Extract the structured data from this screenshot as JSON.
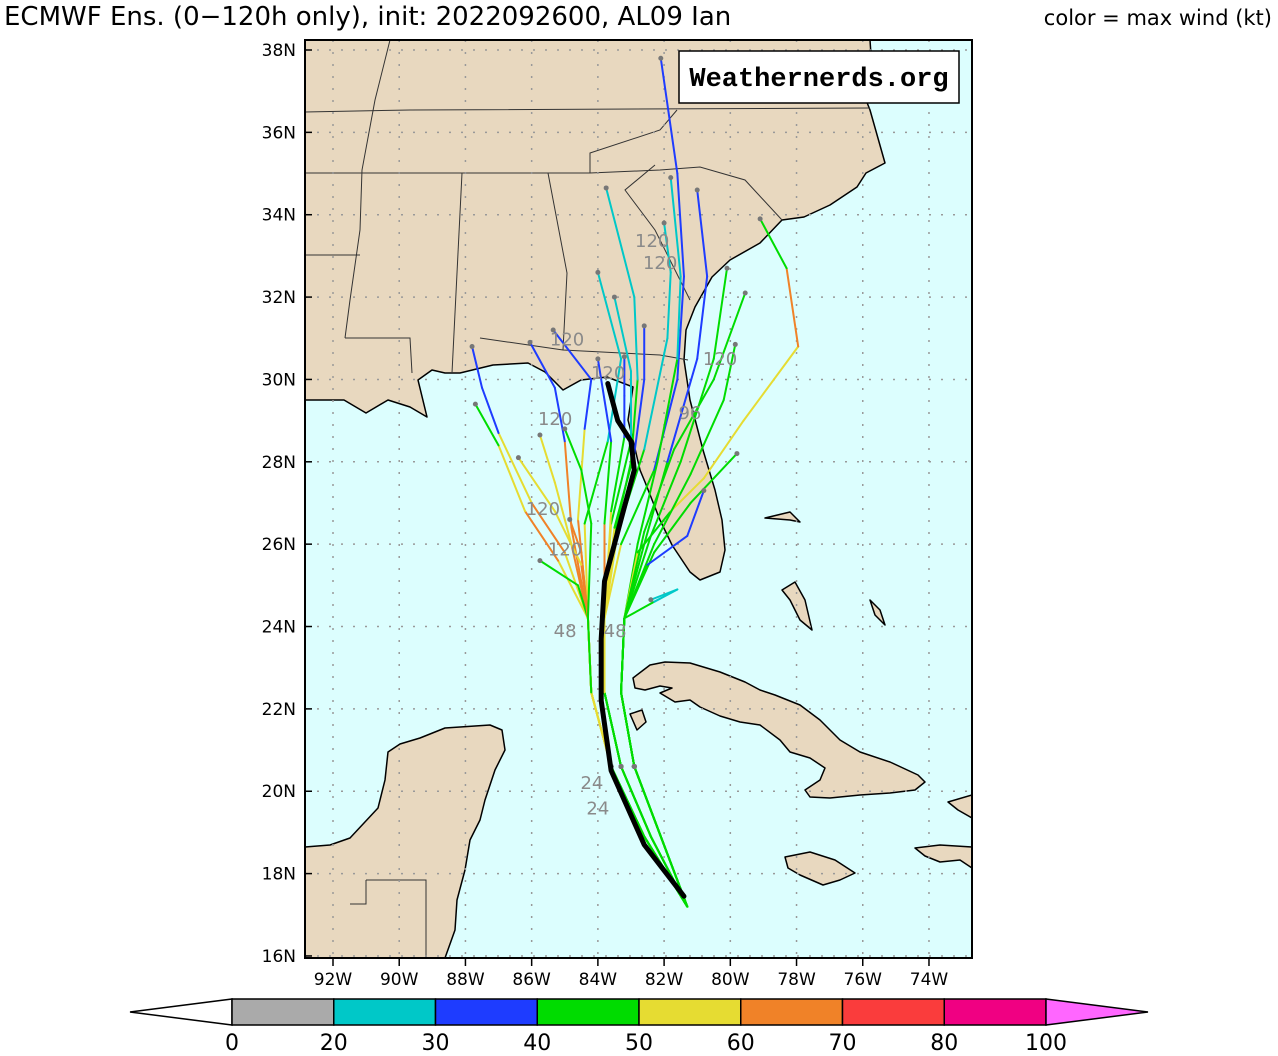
{
  "header": {
    "title": "ECMWF Ens. (0−120h only), init: 2022092600, AL09 Ian",
    "legend_caption": "color = max wind (kt)"
  },
  "watermark": "Weathernerds.org",
  "colors": {
    "ocean": "#dcfefe",
    "land": "#e8d8bf",
    "mean_track": "#000000",
    "point": "#777777"
  },
  "axes": {
    "lat_labels": [
      "38N",
      "36N",
      "34N",
      "32N",
      "30N",
      "28N",
      "26N",
      "24N",
      "22N",
      "20N",
      "18N",
      "16N"
    ],
    "lat_values": [
      38,
      36,
      34,
      32,
      30,
      28,
      26,
      24,
      22,
      20,
      18,
      16
    ],
    "lon_labels": [
      "92W",
      "90W",
      "88W",
      "86W",
      "84W",
      "82W",
      "80W",
      "78W",
      "76W",
      "74W"
    ],
    "lon_values": [
      -92,
      -90,
      -88,
      -86,
      -84,
      -82,
      -80,
      -78,
      -76,
      -74
    ]
  },
  "colorbar": {
    "labels": [
      "0",
      "20",
      "30",
      "40",
      "50",
      "60",
      "70",
      "80",
      "100"
    ],
    "bins": [
      {
        "min": 0,
        "max": 20,
        "color": "#aaaaaa"
      },
      {
        "min": 20,
        "max": 30,
        "color": "#00c8c8"
      },
      {
        "min": 30,
        "max": 40,
        "color": "#1e3cff"
      },
      {
        "min": 40,
        "max": 50,
        "color": "#00dc00"
      },
      {
        "min": 50,
        "max": 60,
        "color": "#e6dc32"
      },
      {
        "min": 60,
        "max": 70,
        "color": "#f08228"
      },
      {
        "min": 70,
        "max": 80,
        "color": "#fa3c3c"
      },
      {
        "min": 80,
        "max": 100,
        "color": "#f00082"
      }
    ],
    "over_color": "#ff66ff",
    "under_color": "#ffffff"
  },
  "mean_track": [
    [
      -81.4,
      17.45
    ],
    [
      -82.6,
      18.7
    ],
    [
      -83.6,
      20.5
    ],
    [
      -83.9,
      22.2
    ],
    [
      -83.9,
      23.7
    ],
    [
      -83.8,
      25.1
    ],
    [
      -83.3,
      26.6
    ],
    [
      -82.9,
      27.8
    ],
    [
      -83.0,
      28.5
    ],
    [
      -83.4,
      29.0
    ],
    [
      -83.7,
      29.9
    ]
  ],
  "members": [
    [
      [
        -81.3,
        17.2,
        45
      ],
      [
        -82.4,
        18.9,
        45
      ],
      [
        -83.3,
        20.6,
        45
      ],
      [
        -83.8,
        22.4,
        45
      ],
      [
        -83.8,
        24.2,
        50
      ],
      [
        -83.3,
        26.0,
        50
      ],
      [
        -82.3,
        27.8,
        45
      ],
      [
        -81.6,
        30.0,
        35
      ],
      [
        -81.4,
        32.5,
        35
      ],
      [
        -81.6,
        35.0,
        35
      ],
      [
        -82.1,
        37.8,
        30
      ]
    ],
    [
      [
        -81.3,
        17.2,
        45
      ],
      [
        -82.4,
        18.9,
        45
      ],
      [
        -83.3,
        20.6,
        45
      ],
      [
        -83.8,
        22.4,
        45
      ],
      [
        -83.8,
        24.2,
        50
      ],
      [
        -83.5,
        26.2,
        55
      ],
      [
        -83.0,
        28.0,
        45
      ],
      [
        -82.8,
        30.0,
        40
      ],
      [
        -82.9,
        32.0,
        25
      ],
      [
        -83.75,
        34.65,
        25
      ]
    ],
    [
      [
        -81.3,
        17.2,
        45
      ],
      [
        -82.1,
        18.9,
        45
      ],
      [
        -82.9,
        20.6,
        45
      ],
      [
        -83.3,
        22.4,
        45
      ],
      [
        -83.2,
        24.2,
        45
      ],
      [
        -82.8,
        26.0,
        45
      ],
      [
        -82.2,
        28.0,
        45
      ],
      [
        -81.6,
        30.5,
        45
      ],
      [
        -81.5,
        32.5,
        25
      ],
      [
        -81.8,
        34.9,
        25
      ]
    ],
    [
      [
        -81.3,
        17.2,
        45
      ],
      [
        -82.1,
        18.9,
        45
      ],
      [
        -82.9,
        20.6,
        45
      ],
      [
        -83.3,
        22.4,
        45
      ],
      [
        -83.2,
        24.2,
        45
      ],
      [
        -82.6,
        26.0,
        45
      ],
      [
        -81.9,
        28.0,
        45
      ],
      [
        -81.0,
        30.5,
        35
      ],
      [
        -80.7,
        32.5,
        35
      ],
      [
        -81.0,
        34.6,
        35
      ]
    ],
    [
      [
        -81.3,
        17.2,
        45
      ],
      [
        -82.4,
        18.9,
        45
      ],
      [
        -83.3,
        20.6,
        45
      ],
      [
        -83.8,
        22.4,
        45
      ],
      [
        -83.8,
        24.2,
        50
      ],
      [
        -83.4,
        26.3,
        55
      ],
      [
        -82.6,
        28.3,
        45
      ],
      [
        -81.9,
        31.0,
        25
      ],
      [
        -81.8,
        32.6,
        25
      ],
      [
        -82.0,
        33.8,
        25
      ]
    ],
    [
      [
        -81.3,
        17.2,
        45
      ],
      [
        -82.1,
        18.9,
        45
      ],
      [
        -82.9,
        20.6,
        45
      ],
      [
        -83.3,
        22.4,
        45
      ],
      [
        -83.2,
        24.2,
        45
      ],
      [
        -82.8,
        25.8,
        50
      ],
      [
        -81.8,
        26.8,
        45
      ],
      [
        -80.8,
        27.6,
        50
      ],
      [
        -79.6,
        29.0,
        55
      ],
      [
        -77.95,
        30.8,
        55
      ],
      [
        -78.3,
        32.7,
        65
      ],
      [
        -79.1,
        33.9,
        45
      ]
    ],
    [
      [
        -81.3,
        17.2,
        45
      ],
      [
        -82.6,
        18.9,
        45
      ],
      [
        -83.6,
        20.6,
        45
      ],
      [
        -84.2,
        22.4,
        50
      ],
      [
        -84.3,
        24.2,
        50
      ],
      [
        -84.4,
        26.5,
        55
      ],
      [
        -83.7,
        28.5,
        45
      ],
      [
        -83.3,
        30.5,
        25
      ],
      [
        -84.0,
        32.6,
        25
      ]
    ],
    [
      [
        -81.3,
        17.2,
        45
      ],
      [
        -82.4,
        18.9,
        45
      ],
      [
        -83.3,
        20.6,
        45
      ],
      [
        -83.8,
        22.4,
        45
      ],
      [
        -83.8,
        24.2,
        50
      ],
      [
        -83.6,
        26.5,
        55
      ],
      [
        -83.0,
        28.5,
        45
      ],
      [
        -83.0,
        30.2,
        25
      ],
      [
        -83.5,
        32.0,
        25
      ]
    ],
    [
      [
        -81.3,
        17.2,
        45
      ],
      [
        -82.4,
        18.9,
        45
      ],
      [
        -83.3,
        20.6,
        45
      ],
      [
        -83.8,
        22.4,
        45
      ],
      [
        -83.8,
        24.2,
        50
      ],
      [
        -83.5,
        26.4,
        50
      ],
      [
        -82.9,
        28.2,
        45
      ],
      [
        -82.6,
        30.0,
        35
      ],
      [
        -82.6,
        31.3,
        35
      ]
    ],
    [
      [
        -81.3,
        17.2,
        45
      ],
      [
        -82.6,
        18.9,
        45
      ],
      [
        -83.6,
        20.6,
        45
      ],
      [
        -84.2,
        22.4,
        50
      ],
      [
        -84.3,
        24.2,
        50
      ],
      [
        -84.6,
        26.6,
        60
      ],
      [
        -84.4,
        28.8,
        55
      ],
      [
        -84.2,
        30.0,
        35
      ],
      [
        -85.35,
        31.2,
        35
      ]
    ],
    [
      [
        -81.3,
        17.2,
        45
      ],
      [
        -82.6,
        18.9,
        45
      ],
      [
        -83.6,
        20.6,
        45
      ],
      [
        -84.2,
        22.4,
        50
      ],
      [
        -84.3,
        24.2,
        50
      ],
      [
        -84.8,
        26.4,
        65
      ],
      [
        -85.0,
        28.5,
        60
      ],
      [
        -85.3,
        29.8,
        35
      ],
      [
        -86.05,
        30.9,
        35
      ]
    ],
    [
      [
        -81.3,
        17.2,
        45
      ],
      [
        -82.6,
        18.9,
        45
      ],
      [
        -83.6,
        20.6,
        45
      ],
      [
        -84.2,
        22.4,
        50
      ],
      [
        -84.3,
        24.2,
        50
      ],
      [
        -85.0,
        25.8,
        55
      ],
      [
        -86.0,
        27.0,
        60
      ],
      [
        -87.0,
        28.7,
        55
      ],
      [
        -87.5,
        29.8,
        35
      ],
      [
        -87.8,
        30.8,
        35
      ]
    ],
    [
      [
        -81.3,
        17.2,
        45
      ],
      [
        -82.6,
        18.9,
        45
      ],
      [
        -83.6,
        20.6,
        45
      ],
      [
        -84.2,
        22.4,
        50
      ],
      [
        -84.3,
        24.2,
        50
      ],
      [
        -85.2,
        25.6,
        50
      ],
      [
        -86.2,
        26.8,
        60
      ],
      [
        -87.0,
        28.4,
        55
      ],
      [
        -87.7,
        29.4,
        45
      ]
    ],
    [
      [
        -81.3,
        17.2,
        45
      ],
      [
        -82.1,
        18.9,
        45
      ],
      [
        -82.9,
        20.6,
        45
      ],
      [
        -83.3,
        22.4,
        45
      ],
      [
        -83.2,
        24.2,
        45
      ],
      [
        -82.6,
        26.3,
        45
      ],
      [
        -81.7,
        28.3,
        45
      ],
      [
        -80.5,
        30.0,
        45
      ],
      [
        -79.55,
        32.1,
        45
      ]
    ],
    [
      [
        -81.3,
        17.2,
        45
      ],
      [
        -82.1,
        18.9,
        45
      ],
      [
        -82.9,
        20.6,
        45
      ],
      [
        -83.3,
        22.4,
        45
      ],
      [
        -83.2,
        24.2,
        45
      ],
      [
        -82.4,
        26.2,
        45
      ],
      [
        -81.5,
        28.0,
        45
      ],
      [
        -80.5,
        30.5,
        45
      ],
      [
        -80.1,
        32.7,
        45
      ]
    ],
    [
      [
        -81.3,
        17.2,
        45
      ],
      [
        -82.1,
        18.9,
        45
      ],
      [
        -82.9,
        20.6,
        45
      ],
      [
        -83.3,
        22.4,
        45
      ],
      [
        -83.2,
        24.2,
        45
      ],
      [
        -82.3,
        26.0,
        45
      ],
      [
        -81.2,
        27.7,
        45
      ],
      [
        -80.2,
        29.5,
        45
      ],
      [
        -79.85,
        30.85,
        45
      ]
    ],
    [
      [
        -81.3,
        17.2,
        45
      ],
      [
        -82.4,
        18.9,
        45
      ],
      [
        -83.3,
        20.6,
        45
      ],
      [
        -83.8,
        22.4,
        45
      ],
      [
        -83.8,
        24.2,
        50
      ],
      [
        -83.8,
        26.5,
        60
      ],
      [
        -83.6,
        28.5,
        45
      ],
      [
        -83.8,
        29.5,
        35
      ],
      [
        -84.0,
        30.5,
        35
      ]
    ],
    [
      [
        -81.3,
        17.2,
        45
      ],
      [
        -82.4,
        18.9,
        45
      ],
      [
        -83.3,
        20.6,
        45
      ],
      [
        -83.8,
        22.4,
        45
      ],
      [
        -83.8,
        24.2,
        50
      ],
      [
        -83.6,
        26.8,
        55
      ],
      [
        -83.2,
        28.6,
        45
      ],
      [
        -83.2,
        29.6,
        35
      ],
      [
        -83.2,
        30.55,
        35
      ]
    ],
    [
      [
        -81.3,
        17.2,
        45
      ],
      [
        -82.6,
        18.9,
        45
      ],
      [
        -83.6,
        20.6,
        45
      ],
      [
        -84.2,
        22.4,
        50
      ],
      [
        -84.3,
        24.2,
        50
      ],
      [
        -84.8,
        26.0,
        60
      ],
      [
        -85.3,
        27.5,
        55
      ],
      [
        -85.75,
        28.65,
        55
      ]
    ],
    [
      [
        -81.3,
        17.2,
        45
      ],
      [
        -82.6,
        18.9,
        45
      ],
      [
        -83.6,
        20.6,
        45
      ],
      [
        -84.2,
        22.4,
        50
      ],
      [
        -84.3,
        24.2,
        45
      ],
      [
        -84.6,
        25.0,
        45
      ],
      [
        -85.75,
        25.6,
        45
      ]
    ],
    [
      [
        -81.3,
        17.2,
        45
      ],
      [
        -82.6,
        18.9,
        45
      ],
      [
        -83.6,
        20.6,
        45
      ],
      [
        -84.2,
        22.4,
        50
      ],
      [
        -84.3,
        24.2,
        60
      ],
      [
        -84.5,
        25.8,
        65
      ],
      [
        -84.85,
        26.6,
        65
      ]
    ],
    [
      [
        -81.3,
        17.2,
        45
      ],
      [
        -82.1,
        18.9,
        45
      ],
      [
        -82.9,
        20.6,
        45
      ],
      [
        -83.3,
        22.4,
        45
      ],
      [
        -83.2,
        24.2,
        45
      ],
      [
        -82.3,
        25.8,
        45
      ],
      [
        -81.2,
        27.0,
        45
      ],
      [
        -79.8,
        28.2,
        45
      ]
    ],
    [
      [
        -81.3,
        17.2,
        45
      ],
      [
        -82.1,
        18.9,
        45
      ],
      [
        -82.9,
        20.6,
        45
      ],
      [
        -83.3,
        22.4,
        45
      ],
      [
        -83.2,
        24.2,
        45
      ],
      [
        -82.5,
        25.5,
        45
      ],
      [
        -81.3,
        26.2,
        35
      ],
      [
        -80.8,
        27.3,
        35
      ]
    ],
    [
      [
        -81.3,
        17.2,
        45
      ],
      [
        -82.1,
        18.9,
        45
      ],
      [
        -82.9,
        20.6,
        45
      ],
      [
        -83.3,
        22.4,
        45
      ],
      [
        -83.2,
        24.2,
        45
      ],
      [
        -82.3,
        24.6,
        45
      ],
      [
        -81.6,
        24.9,
        25
      ],
      [
        -82.4,
        24.65,
        25
      ]
    ],
    [
      [
        -81.3,
        17.2,
        45
      ],
      [
        -82.6,
        18.9,
        45
      ],
      [
        -83.6,
        20.6,
        45
      ],
      [
        -84.2,
        22.4,
        50
      ],
      [
        -84.3,
        24.2,
        55
      ],
      [
        -84.5,
        25.5,
        60
      ],
      [
        -85.3,
        26.8,
        55
      ],
      [
        -86.4,
        28.1,
        55
      ]
    ],
    [
      [
        -81.3,
        17.2,
        45
      ],
      [
        -82.6,
        18.9,
        45
      ],
      [
        -83.6,
        20.6,
        45
      ],
      [
        -84.2,
        22.4,
        50
      ],
      [
        -84.3,
        24.2,
        45
      ],
      [
        -84.2,
        26.5,
        45
      ],
      [
        -84.5,
        27.8,
        45
      ],
      [
        -85.0,
        28.8,
        45
      ]
    ]
  ],
  "hour_labels": [
    {
      "text": "120",
      "lon": -82.36,
      "lat": 33.39
    },
    {
      "text": "120",
      "lon": -82.12,
      "lat": 32.85
    },
    {
      "text": "120",
      "lon": -84.93,
      "lat": 31.0
    },
    {
      "text": "120",
      "lon": -85.29,
      "lat": 29.06
    },
    {
      "text": "120",
      "lon": -85.66,
      "lat": 26.88
    },
    {
      "text": "120",
      "lon": -84.99,
      "lat": 25.9
    },
    {
      "text": "120",
      "lon": -83.69,
      "lat": 30.18
    },
    {
      "text": "120",
      "lon": -80.31,
      "lat": 30.52
    },
    {
      "text": "96",
      "lon": -81.22,
      "lat": 29.21
    },
    {
      "text": "48",
      "lon": -84.99,
      "lat": 23.92
    },
    {
      "text": "48",
      "lon": -83.48,
      "lat": 23.92
    },
    {
      "text": "24",
      "lon": -84.18,
      "lat": 20.23
    },
    {
      "text": "24",
      "lon": -84.0,
      "lat": 20.04
    }
  ]
}
